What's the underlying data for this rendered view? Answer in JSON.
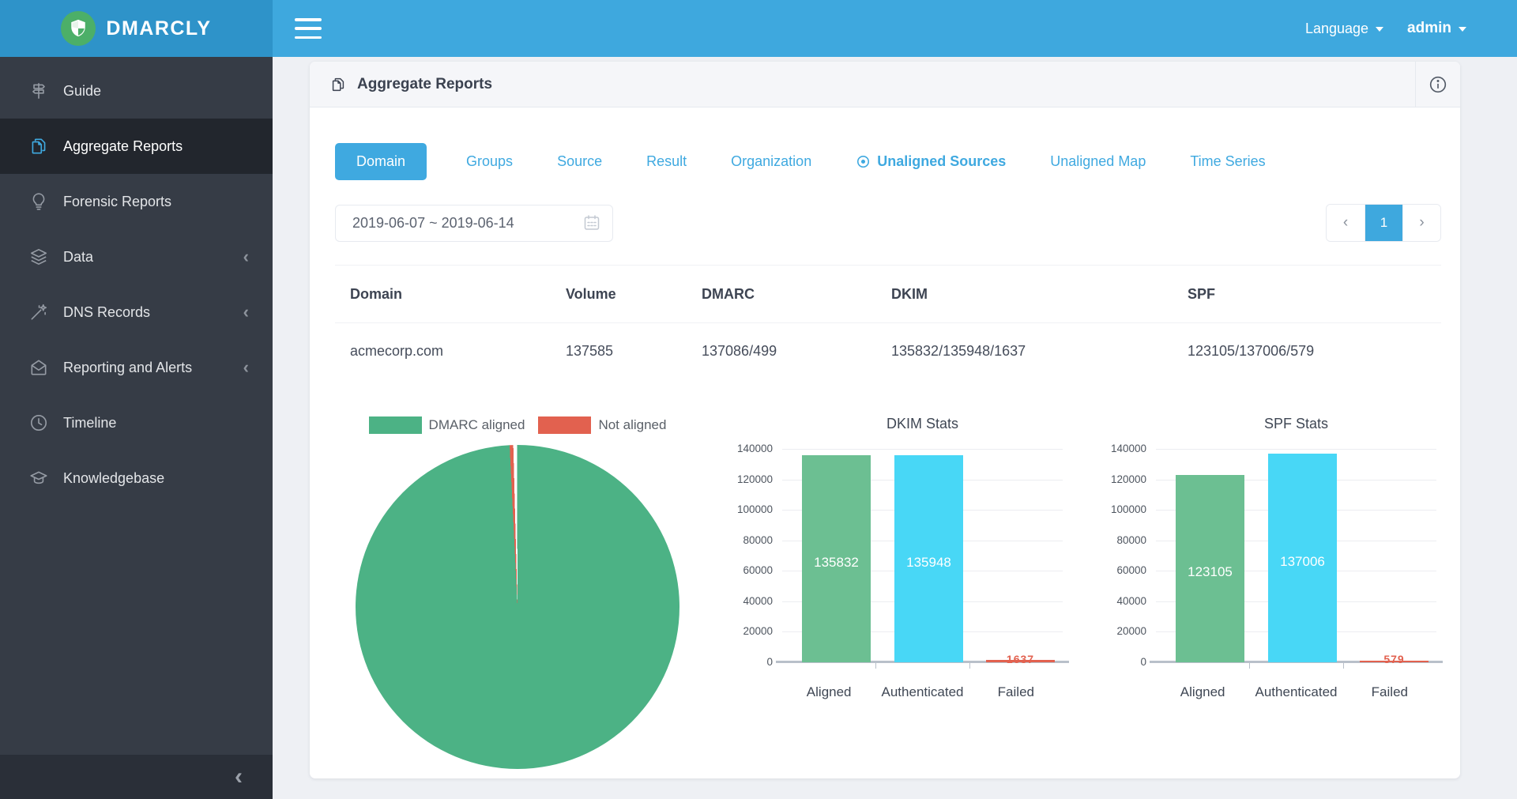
{
  "topbar": {
    "brand": "DMARCLY",
    "language_label": "Language",
    "user_label": "admin"
  },
  "sidebar": {
    "items": [
      {
        "label": "Guide",
        "icon": "signpost-icon",
        "active": false,
        "expandable": false
      },
      {
        "label": "Aggregate Reports",
        "icon": "pages-icon",
        "active": true,
        "expandable": false
      },
      {
        "label": "Forensic Reports",
        "icon": "lightbulb-icon",
        "active": false,
        "expandable": false
      },
      {
        "label": "Data",
        "icon": "layers-icon",
        "active": false,
        "expandable": true
      },
      {
        "label": "DNS Records",
        "icon": "wand-icon",
        "active": false,
        "expandable": true
      },
      {
        "label": "Reporting and Alerts",
        "icon": "mail-open-icon",
        "active": false,
        "expandable": true
      },
      {
        "label": "Timeline",
        "icon": "clock-icon",
        "active": false,
        "expandable": false
      },
      {
        "label": "Knowledgebase",
        "icon": "graduation-cap-icon",
        "active": false,
        "expandable": false
      }
    ],
    "collapse_glyph": "‹"
  },
  "header": {
    "title": "Aggregate Reports"
  },
  "tabs": [
    {
      "label": "Domain",
      "active": true
    },
    {
      "label": "Groups"
    },
    {
      "label": "Source"
    },
    {
      "label": "Result"
    },
    {
      "label": "Organization"
    },
    {
      "label": "Unaligned Sources",
      "icon": "target-icon",
      "emphasis": true
    },
    {
      "label": "Unaligned Map"
    },
    {
      "label": "Time Series"
    }
  ],
  "filters": {
    "date_range": "2019-06-07 ~ 2019-06-14"
  },
  "pagination": {
    "prev": "‹",
    "pages": [
      "1"
    ],
    "current": "1",
    "next": "›"
  },
  "table": {
    "columns": [
      "Domain",
      "Volume",
      "DMARC",
      "DKIM",
      "SPF"
    ],
    "rows": [
      [
        "acmecorp.com",
        "137585",
        "137086/499",
        "135832/135948/1637",
        "123105/137006/579"
      ]
    ]
  },
  "chart_data": [
    {
      "type": "pie",
      "legend": [
        {
          "label": "DMARC aligned",
          "color": "#4CB285"
        },
        {
          "label": "Not aligned",
          "color": "#E2614F"
        }
      ],
      "slices": [
        {
          "label": "DMARC aligned",
          "value": 137086,
          "color": "#4CB285"
        },
        {
          "label": "Not aligned",
          "value": 499,
          "color": "#E2614F"
        }
      ]
    },
    {
      "type": "bar",
      "title": "DKIM Stats",
      "categories": [
        "Aligned",
        "Authenticated",
        "Failed"
      ],
      "values": [
        135832,
        135948,
        1637
      ],
      "colors": [
        "#6CBF92",
        "#48D7F6",
        "#E2614F"
      ],
      "ylim": [
        0,
        140000
      ],
      "ytick_step": 20000,
      "grid": true,
      "legend_position": "none"
    },
    {
      "type": "bar",
      "title": "SPF Stats",
      "categories": [
        "Aligned",
        "Authenticated",
        "Failed"
      ],
      "values": [
        123105,
        137006,
        579
      ],
      "colors": [
        "#6CBF92",
        "#48D7F6",
        "#E2614F"
      ],
      "ylim": [
        0,
        140000
      ],
      "ytick_step": 20000,
      "grid": true,
      "legend_position": "none"
    }
  ]
}
